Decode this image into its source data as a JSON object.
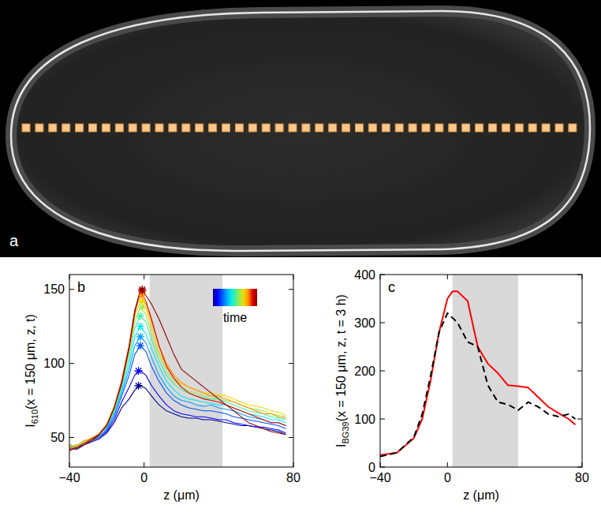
{
  "panel_a": {
    "panel_label": "a"
  },
  "chart_data": [
    {
      "panel_label": "b",
      "type": "line",
      "xlabel": "z (μm)",
      "ylabel": "I610(x = 150 μm, z, t)",
      "xlim": [
        -40,
        80
      ],
      "ylim": [
        30,
        160
      ],
      "xticks": [
        {
          "value": -40,
          "label": "−40"
        },
        0,
        80
      ],
      "yticks": [
        50,
        100,
        150
      ],
      "band": [
        3,
        42
      ],
      "colorbar": {
        "label": "time"
      },
      "x": [
        -40,
        -36,
        -32,
        -28,
        -24,
        -20,
        -16,
        -12,
        -8,
        -5,
        -2,
        1,
        4,
        8,
        12,
        16,
        20,
        24,
        28,
        32,
        36,
        40,
        44,
        48,
        52,
        56,
        60,
        64,
        68,
        72,
        76
      ],
      "series": [
        {
          "color": "#00008f",
          "values": [
            43,
            42,
            45,
            47,
            49,
            53,
            60,
            70,
            76,
            82,
            85,
            83,
            78,
            72,
            68,
            66,
            64,
            63,
            63,
            62,
            62,
            61,
            60,
            59,
            58,
            58,
            57,
            56,
            55,
            54,
            52
          ]
        },
        {
          "color": "#0000ff",
          "values": [
            44,
            43,
            46,
            48,
            50,
            54,
            62,
            74,
            84,
            92,
            95,
            92,
            85,
            78,
            72,
            68,
            66,
            65,
            64,
            64,
            63,
            62,
            62,
            60,
            59,
            58,
            57,
            57,
            56,
            55,
            53
          ]
        },
        {
          "color": "#0050ff",
          "values": [
            45,
            44,
            46,
            48,
            51,
            55,
            64,
            78,
            92,
            106,
            112,
            108,
            98,
            88,
            80,
            75,
            72,
            70,
            69,
            68,
            68,
            67,
            66,
            64,
            63,
            62,
            61,
            60,
            59,
            58,
            56
          ]
        },
        {
          "color": "#00a0ff",
          "values": [
            42,
            44,
            47,
            49,
            50,
            56,
            66,
            80,
            96,
            112,
            118,
            114,
            104,
            92,
            84,
            78,
            75,
            74,
            72,
            71,
            72,
            70,
            69,
            68,
            66,
            64,
            63,
            62,
            60,
            60,
            58
          ]
        },
        {
          "color": "#00e8f0",
          "values": [
            44,
            45,
            46,
            50,
            52,
            57,
            67,
            82,
            100,
            118,
            125,
            120,
            110,
            98,
            88,
            82,
            78,
            76,
            75,
            74,
            73,
            72,
            72,
            70,
            68,
            66,
            65,
            64,
            62,
            62,
            60
          ]
        },
        {
          "color": "#40f0a0",
          "values": [
            43,
            44,
            47,
            48,
            52,
            58,
            68,
            84,
            104,
            124,
            132,
            128,
            116,
            102,
            92,
            86,
            82,
            80,
            78,
            77,
            76,
            76,
            74,
            72,
            70,
            68,
            67,
            66,
            64,
            63,
            62
          ]
        },
        {
          "color": "#a0e850",
          "values": [
            45,
            43,
            46,
            49,
            53,
            58,
            69,
            86,
            108,
            128,
            138,
            133,
            120,
            106,
            95,
            88,
            84,
            81,
            80,
            78,
            78,
            76,
            75,
            74,
            72,
            70,
            69,
            68,
            66,
            65,
            64
          ]
        },
        {
          "color": "#f0d800",
          "values": [
            44,
            45,
            47,
            50,
            52,
            59,
            70,
            88,
            110,
            132,
            142,
            137,
            124,
            108,
            98,
            90,
            86,
            84,
            82,
            80,
            80,
            79,
            78,
            76,
            74,
            72,
            71,
            70,
            68,
            67,
            65
          ]
        },
        {
          "color": "#ff9000",
          "values": [
            43,
            44,
            48,
            49,
            53,
            59,
            71,
            88,
            112,
            135,
            146,
            140,
            128,
            112,
            100,
            92,
            87,
            84,
            82,
            80,
            78,
            78,
            76,
            74,
            72,
            70,
            68,
            66,
            66,
            64,
            63
          ]
        },
        {
          "color": "#e00000",
          "values": [
            42,
            43,
            46,
            49,
            52,
            58,
            70,
            88,
            112,
            136,
            149,
            142,
            130,
            112,
            98,
            90,
            84,
            80,
            78,
            76,
            75,
            74,
            72,
            70,
            68,
            66,
            64,
            62,
            60,
            60,
            58
          ]
        },
        {
          "color": "#8f0000",
          "values": [
            41,
            43,
            45,
            48,
            52,
            58,
            70,
            86,
            110,
            134,
            150,
            146,
            140,
            130,
            118,
            106,
            96,
            92,
            88,
            84,
            80,
            76,
            72,
            68,
            64,
            60,
            58,
            56,
            54,
            53,
            52
          ]
        },
        {
          "type": "scatter",
          "marker": "star",
          "x": [
            -3,
            -3,
            -2,
            -2,
            -2,
            -2,
            -1,
            -1,
            -1,
            -1,
            -1
          ],
          "values": [
            85,
            95,
            112,
            118,
            125,
            132,
            138,
            142,
            146,
            149,
            150
          ],
          "colors": [
            "#00008f",
            "#0000ff",
            "#0050ff",
            "#00a0ff",
            "#00e8f0",
            "#40f0a0",
            "#a0e850",
            "#f0d800",
            "#ff9000",
            "#e00000",
            "#8f0000"
          ]
        }
      ]
    },
    {
      "panel_label": "c",
      "type": "line",
      "xlabel": "z (μm)",
      "ylabel": "IBG39(x = 150 μm, z, t = 3 h)",
      "xlim": [
        -40,
        80
      ],
      "ylim": [
        0,
        400
      ],
      "xticks": [
        {
          "value": -40,
          "label": "−40"
        },
        0,
        80
      ],
      "yticks": [
        0,
        100,
        200,
        300,
        400
      ],
      "band": [
        3,
        42
      ],
      "x": [
        -40,
        -30,
        -20,
        -15,
        -10,
        -5,
        0,
        3,
        6,
        12,
        18,
        24,
        30,
        36,
        42,
        48,
        54,
        60,
        66,
        72,
        76
      ],
      "series": [
        {
          "color": "#ff0000",
          "line_style": "solid",
          "values": [
            25,
            30,
            60,
            100,
            180,
            280,
            350,
            365,
            365,
            345,
            250,
            215,
            195,
            170,
            168,
            165,
            145,
            125,
            112,
            100,
            88
          ]
        },
        {
          "color": "#000000",
          "line_style": "dashed",
          "values": [
            22,
            30,
            62,
            110,
            190,
            280,
            320,
            310,
            300,
            260,
            250,
            170,
            135,
            130,
            118,
            135,
            125,
            110,
            105,
            110,
            100
          ]
        }
      ]
    }
  ]
}
